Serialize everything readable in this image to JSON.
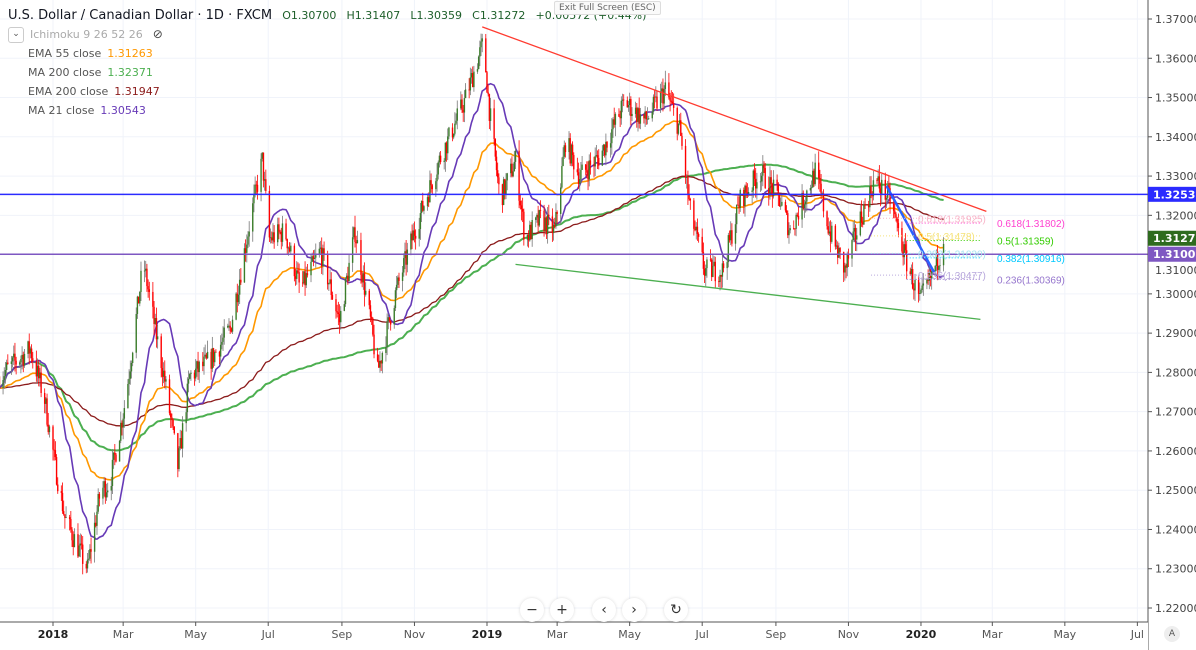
{
  "header": {
    "symbol": "U.S. Dollar / Canadian Dollar · 1D · FXCM",
    "open": "O1.30700",
    "high": "H1.31407",
    "low": "L1.30359",
    "close": "C1.31272",
    "change": "+0.00572 (+0.44%)"
  },
  "exit_fullscreen": "Exit Full Screen (ESC)",
  "legend": {
    "ichimoku": "Ichimoku 9 26 52 26",
    "items": [
      {
        "label": "EMA 55 close",
        "value": "1.31263",
        "color": "#ff9800"
      },
      {
        "label": "MA 200 close",
        "value": "1.32371",
        "color": "#4caf50"
      },
      {
        "label": "EMA 200 close",
        "value": "1.31947",
        "color": "#8b1a1a"
      },
      {
        "label": "MA 21 close",
        "value": "1.30543",
        "color": "#673ab7"
      }
    ]
  },
  "nav": {
    "zoom_out": "−",
    "zoom_in": "+",
    "back": "‹",
    "forward": "›",
    "reset": "↻",
    "auto": "A"
  },
  "chart_data": {
    "type": "candlestick",
    "x_ticks": [
      [
        "2018-01-01",
        "2018"
      ],
      [
        "2018-03-01",
        "Mar"
      ],
      [
        "2018-05-01",
        "May"
      ],
      [
        "2018-07-01",
        "Jul"
      ],
      [
        "2018-09-01",
        "Sep"
      ],
      [
        "2018-11-01",
        "Nov"
      ],
      [
        "2019-01-01",
        "2019"
      ],
      [
        "2019-03-01",
        "Mar"
      ],
      [
        "2019-05-01",
        "May"
      ],
      [
        "2019-07-01",
        "Jul"
      ],
      [
        "2019-09-01",
        "Sep"
      ],
      [
        "2019-11-01",
        "Nov"
      ],
      [
        "2020-01-01",
        "2020"
      ],
      [
        "2020-03-01",
        "Mar"
      ],
      [
        "2020-05-01",
        "May"
      ],
      [
        "2020-07-01",
        "Jul"
      ]
    ],
    "y_ticks": [
      "1.37000",
      "1.36000",
      "1.35000",
      "1.34000",
      "1.33000",
      "1.32000",
      "1.31000",
      "1.30000",
      "1.29000",
      "1.28000",
      "1.27000",
      "1.26000",
      "1.25000",
      "1.24000",
      "1.23000",
      "1.22000"
    ],
    "ylim": [
      1.22,
      1.37
    ],
    "close_path": [
      [
        "2017-11-17",
        1.279
      ],
      [
        "2017-12-13",
        1.286
      ],
      [
        "2017-12-25",
        1.273
      ],
      [
        "2018-01-03",
        1.256
      ],
      [
        "2018-01-11",
        1.243
      ],
      [
        "2018-01-30",
        1.23
      ],
      [
        "2018-02-10",
        1.25
      ],
      [
        "2018-02-18",
        1.252
      ],
      [
        "2018-03-03",
        1.273
      ],
      [
        "2018-03-18",
        1.308
      ],
      [
        "2018-03-28",
        1.291
      ],
      [
        "2018-04-05",
        1.278
      ],
      [
        "2018-04-16",
        1.256
      ],
      [
        "2018-04-26",
        1.279
      ],
      [
        "2018-05-13",
        1.283
      ],
      [
        "2018-05-30",
        1.291
      ],
      [
        "2018-06-16",
        1.319
      ],
      [
        "2018-06-26",
        1.334
      ],
      [
        "2018-07-02",
        1.314
      ],
      [
        "2018-07-15",
        1.316
      ],
      [
        "2018-07-28",
        1.301
      ],
      [
        "2018-08-14",
        1.311
      ],
      [
        "2018-08-30",
        1.293
      ],
      [
        "2018-09-12",
        1.316
      ],
      [
        "2018-09-25",
        1.293
      ],
      [
        "2018-10-01",
        1.28
      ],
      [
        "2018-10-16",
        1.3
      ],
      [
        "2018-11-01",
        1.316
      ],
      [
        "2018-11-22",
        1.334
      ],
      [
        "2018-12-13",
        1.349
      ],
      [
        "2018-12-29",
        1.364
      ],
      [
        "2019-01-03",
        1.347
      ],
      [
        "2019-01-12",
        1.324
      ],
      [
        "2019-01-25",
        1.334
      ],
      [
        "2019-02-02",
        1.314
      ],
      [
        "2019-02-15",
        1.319
      ],
      [
        "2019-02-27",
        1.316
      ],
      [
        "2019-03-08",
        1.339
      ],
      [
        "2019-03-20",
        1.33
      ],
      [
        "2019-04-06",
        1.335
      ],
      [
        "2019-04-27",
        1.349
      ],
      [
        "2019-05-14",
        1.344
      ],
      [
        "2019-05-31",
        1.352
      ],
      [
        "2019-06-12",
        1.342
      ],
      [
        "2019-06-21",
        1.321
      ],
      [
        "2019-07-03",
        1.306
      ],
      [
        "2019-07-18",
        1.306
      ],
      [
        "2019-08-02",
        1.324
      ],
      [
        "2019-08-19",
        1.331
      ],
      [
        "2019-09-04",
        1.324
      ],
      [
        "2019-09-13",
        1.316
      ],
      [
        "2019-10-04",
        1.331
      ],
      [
        "2019-10-16",
        1.316
      ],
      [
        "2019-10-29",
        1.306
      ],
      [
        "2019-11-11",
        1.319
      ],
      [
        "2019-11-23",
        1.329
      ],
      [
        "2019-12-06",
        1.324
      ],
      [
        "2019-12-19",
        1.309
      ],
      [
        "2019-12-31",
        1.298
      ],
      [
        "2020-01-08",
        1.303
      ],
      [
        "2020-01-20",
        1.3127
      ]
    ],
    "colors": {
      "up": "#3a7d2a",
      "down": "#ff0000",
      "ema55": "#ff9800",
      "ma200": "#4caf50",
      "ema200": "#8b1a1a",
      "ma21": "#673ab7"
    },
    "trendlines": [
      {
        "from": [
          "2018-12-28",
          1.368
        ],
        "to": [
          "2020-02-25",
          1.321
        ],
        "color": "#ff3b30"
      },
      {
        "from": [
          "2019-01-25",
          1.3075
        ],
        "to": [
          "2020-02-20",
          1.2935
        ],
        "color": "#4caf50"
      },
      {
        "from": [
          "2019-12-03",
          1.3275
        ],
        "to": [
          "2020-01-12",
          1.3055
        ],
        "color": "#2962ff"
      }
    ],
    "hlines": [
      {
        "price": 1.32535,
        "label": "1.32535",
        "color": "#2b2bff"
      },
      {
        "price": 1.31009,
        "label": "1.31009",
        "color": "#7e57c2"
      }
    ],
    "last_price": {
      "price": 1.31272,
      "label": "1.31272",
      "color": "#2e6b1e"
    },
    "fib_old": [
      {
        "price": 1.31925,
        "label": "0.618(1.31925)",
        "color": "#f8b4c8"
      },
      {
        "price": 1.31478,
        "label": "0.5(1.31478)",
        "color": "#f5e27a"
      },
      {
        "price": 1.3103,
        "label": "0.382(1.31030)",
        "color": "#a8e4f0"
      },
      {
        "price": 1.30477,
        "label": "0.236(1.30477)",
        "color": "#b8a8dc"
      }
    ],
    "fib_new": [
      {
        "price": 1.31802,
        "label": "0.618(1.31802)",
        "color": "#ff40d0"
      },
      {
        "price": 1.31359,
        "label": "0.5(1.31359)",
        "color": "#33cc00"
      },
      {
        "price": 1.30916,
        "label": "0.382(1.30916)",
        "color": "#00c8ff"
      },
      {
        "price": 1.30369,
        "label": "0.236(1.30369)",
        "color": "#9575cd"
      }
    ]
  }
}
